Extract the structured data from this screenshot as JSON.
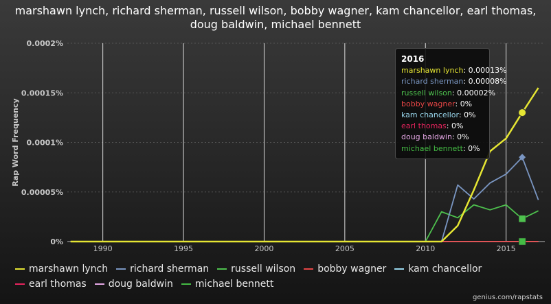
{
  "title": "marshawn lynch, richard sherman, russell wilson, bobby wagner, kam chancellor, earl thomas, doug baldwin, michael bennett",
  "credit": "genius.com/rapstats",
  "tooltip": {
    "title": "2016",
    "rows": [
      {
        "name": "marshawn lynch",
        "value": "0.00013%",
        "color": "#e6e633"
      },
      {
        "name": "richard sherman",
        "value": "0.00008%",
        "color": "#7a96c2"
      },
      {
        "name": "russell wilson",
        "value": "0.00002%",
        "color": "#4ec24e"
      },
      {
        "name": "bobby wagner",
        "value": "0%",
        "color": "#e84646"
      },
      {
        "name": "kam chancellor",
        "value": "0%",
        "color": "#9ad8ee"
      },
      {
        "name": "earl thomas",
        "value": "0%",
        "color": "#e8245e"
      },
      {
        "name": "doug baldwin",
        "value": "0%",
        "color": "#e6a8e6"
      },
      {
        "name": "michael bennett",
        "value": "0%",
        "color": "#44bb44"
      }
    ]
  },
  "chart_data": {
    "type": "line",
    "title": "marshawn lynch, richard sherman, russell wilson, bobby wagner, kam chancellor, earl thomas, doug baldwin, michael bennett",
    "ylabel": "Rap Word Frequency",
    "xlabel": "",
    "xlim": [
      1987.8,
      2017.4
    ],
    "ylim": [
      0,
      0.0002
    ],
    "x_ticks": [
      1990,
      1995,
      2000,
      2005,
      2010,
      2015
    ],
    "x_tick_labels": [
      "1990",
      "1995",
      "2000",
      "2005",
      "2010",
      "2015"
    ],
    "y_ticks": [
      0,
      5e-05,
      0.0001,
      0.00015,
      0.0002
    ],
    "y_tick_labels": [
      "0%",
      "0.00005%",
      "0.0001%",
      "0.00015%",
      "0.0002%"
    ],
    "grid": "vertical",
    "legend_position": "bottom",
    "highlight_x": 2016,
    "x": [
      1988,
      1989,
      1990,
      1991,
      1992,
      1993,
      1994,
      1995,
      1996,
      1997,
      1998,
      1999,
      2000,
      2001,
      2002,
      2003,
      2004,
      2005,
      2006,
      2007,
      2008,
      2009,
      2010,
      2011,
      2012,
      2013,
      2014,
      2015,
      2016,
      2017
    ],
    "series": [
      {
        "name": "marshawn lynch",
        "color": "#e6e633",
        "values": [
          0,
          0,
          0,
          0,
          0,
          0,
          0,
          0,
          0,
          0,
          0,
          0,
          0,
          0,
          0,
          0,
          0,
          0,
          0,
          0,
          0,
          0,
          0,
          0,
          1.6e-05,
          5.2e-05,
          9.1e-05,
          0.000104,
          0.00013,
          0.000155
        ]
      },
      {
        "name": "richard sherman",
        "color": "#7a96c2",
        "values": [
          0,
          0,
          0,
          0,
          0,
          0,
          0,
          0,
          0,
          0,
          0,
          0,
          0,
          0,
          0,
          0,
          0,
          0,
          0,
          0,
          0,
          0,
          0,
          0,
          5.7e-05,
          4.3e-05,
          5.9e-05,
          6.8e-05,
          8.5e-05,
          4.2e-05
        ]
      },
      {
        "name": "russell wilson",
        "color": "#4ec24e",
        "values": [
          0,
          0,
          0,
          0,
          0,
          0,
          0,
          0,
          0,
          0,
          0,
          0,
          0,
          0,
          0,
          0,
          0,
          0,
          0,
          0,
          0,
          0,
          0,
          3e-05,
          2.4e-05,
          3.7e-05,
          3.2e-05,
          3.7e-05,
          2.3e-05,
          3.1e-05
        ]
      },
      {
        "name": "bobby wagner",
        "color": "#e84646",
        "values": [
          0,
          0,
          0,
          0,
          0,
          0,
          0,
          0,
          0,
          0,
          0,
          0,
          0,
          0,
          0,
          0,
          0,
          0,
          0,
          0,
          0,
          0,
          0,
          0,
          0,
          0,
          0,
          0,
          0,
          0
        ]
      },
      {
        "name": "kam chancellor",
        "color": "#9ad8ee",
        "values": [
          0,
          0,
          0,
          0,
          0,
          0,
          0,
          0,
          0,
          0,
          0,
          0,
          0,
          0,
          0,
          0,
          0,
          0,
          0,
          0,
          0,
          0,
          0,
          0,
          0,
          0,
          0,
          0,
          0,
          0
        ]
      },
      {
        "name": "earl thomas",
        "color": "#e8245e",
        "values": [
          0,
          0,
          0,
          0,
          0,
          0,
          0,
          0,
          0,
          0,
          0,
          0,
          0,
          0,
          0,
          0,
          0,
          0,
          0,
          0,
          0,
          0,
          0,
          0,
          0,
          0,
          0,
          0,
          0,
          0
        ]
      },
      {
        "name": "doug baldwin",
        "color": "#e6a8e6",
        "values": [
          0,
          0,
          0,
          0,
          0,
          0,
          0,
          0,
          0,
          0,
          0,
          0,
          0,
          0,
          0,
          0,
          0,
          0,
          0,
          0,
          0,
          0,
          0,
          0,
          0,
          0,
          0,
          0,
          0,
          0
        ]
      },
      {
        "name": "michael bennett",
        "color": "#44bb44",
        "values": [
          0,
          0,
          0,
          0,
          0,
          0,
          0,
          0,
          0,
          0,
          0,
          0,
          0,
          0,
          0,
          0,
          0,
          0,
          0,
          0,
          0,
          0,
          0,
          0,
          0,
          0,
          0,
          0,
          0,
          0
        ]
      }
    ]
  }
}
